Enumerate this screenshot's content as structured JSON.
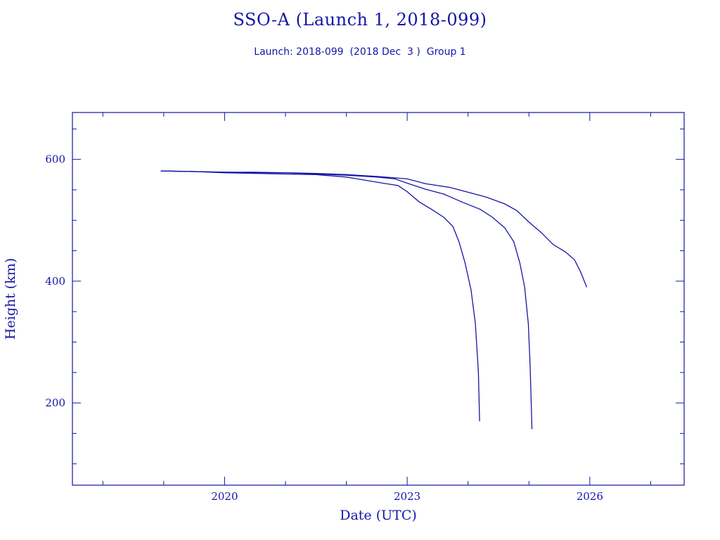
{
  "title": "SSO-A (Launch 1, 2018-099)",
  "subtitle": "Launch: 2018-099  (2018 Dec  3 )  Group 1",
  "colors": {
    "line": "#1515a5",
    "background": "#ffffff"
  },
  "chart_data": {
    "type": "line",
    "title": "SSO-A (Launch 1, 2018-099)",
    "subtitle": "Launch: 2018-099  (2018 Dec  3 )  Group 1",
    "xlabel": "Date (UTC)",
    "ylabel": "Height (km)",
    "xlim": [
      2017.5,
      2027.55
    ],
    "ylim": [
      65,
      677
    ],
    "x_ticks": [
      2020,
      2023,
      2026
    ],
    "y_ticks": [
      200,
      400,
      600
    ],
    "x_minor_step": 1,
    "y_minor_step": 50,
    "grid": false,
    "series": [
      {
        "points": [
          [
            2018.95,
            581
          ],
          [
            2019.5,
            580
          ],
          [
            2020.0,
            578
          ],
          [
            2020.5,
            577
          ],
          [
            2021.0,
            576
          ],
          [
            2021.5,
            575
          ],
          [
            2022.0,
            571
          ],
          [
            2022.3,
            566
          ],
          [
            2022.6,
            561
          ],
          [
            2022.85,
            557
          ],
          [
            2023.0,
            547
          ],
          [
            2023.2,
            530
          ],
          [
            2023.4,
            518
          ],
          [
            2023.6,
            505
          ],
          [
            2023.75,
            490
          ],
          [
            2023.85,
            465
          ],
          [
            2023.95,
            430
          ],
          [
            2024.05,
            385
          ],
          [
            2024.12,
            330
          ],
          [
            2024.17,
            250
          ],
          [
            2024.19,
            170
          ]
        ]
      },
      {
        "points": [
          [
            2018.95,
            581
          ],
          [
            2019.5,
            580
          ],
          [
            2020.0,
            579
          ],
          [
            2020.5,
            578
          ],
          [
            2021.0,
            578
          ],
          [
            2021.5,
            576
          ],
          [
            2022.0,
            574
          ],
          [
            2022.5,
            571
          ],
          [
            2022.8,
            568
          ],
          [
            2023.0,
            561
          ],
          [
            2023.3,
            551
          ],
          [
            2023.6,
            543
          ],
          [
            2023.9,
            530
          ],
          [
            2024.2,
            518
          ],
          [
            2024.4,
            505
          ],
          [
            2024.6,
            488
          ],
          [
            2024.75,
            465
          ],
          [
            2024.85,
            430
          ],
          [
            2024.93,
            390
          ],
          [
            2024.99,
            330
          ],
          [
            2025.02,
            260
          ],
          [
            2025.05,
            157
          ]
        ]
      },
      {
        "points": [
          [
            2018.95,
            581
          ],
          [
            2019.5,
            580
          ],
          [
            2020.0,
            579
          ],
          [
            2020.5,
            579
          ],
          [
            2021.0,
            578
          ],
          [
            2021.5,
            577
          ],
          [
            2022.0,
            575
          ],
          [
            2022.5,
            572
          ],
          [
            2023.0,
            568
          ],
          [
            2023.3,
            560
          ],
          [
            2023.7,
            554
          ],
          [
            2024.0,
            546
          ],
          [
            2024.3,
            538
          ],
          [
            2024.6,
            527
          ],
          [
            2024.8,
            516
          ],
          [
            2025.0,
            497
          ],
          [
            2025.2,
            480
          ],
          [
            2025.4,
            460
          ],
          [
            2025.6,
            448
          ],
          [
            2025.75,
            435
          ],
          [
            2025.85,
            415
          ],
          [
            2025.95,
            390
          ]
        ]
      }
    ]
  }
}
